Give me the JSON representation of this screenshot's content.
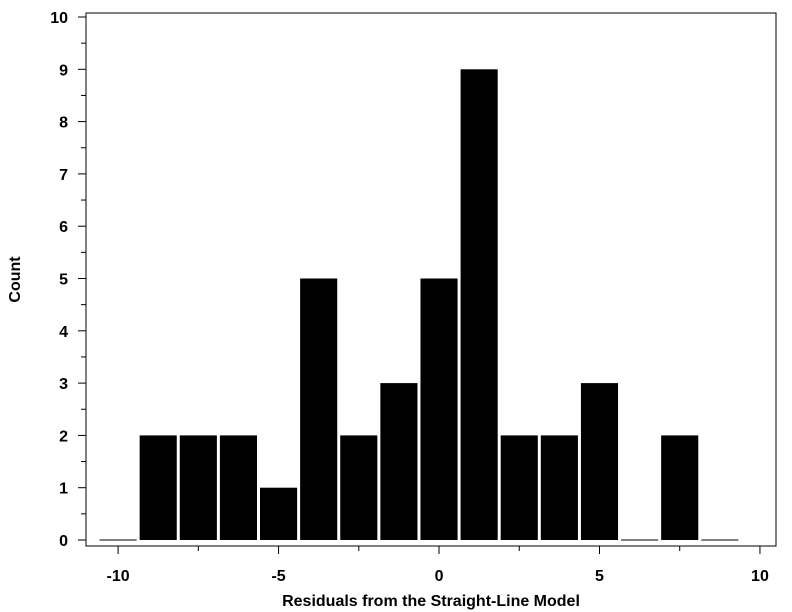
{
  "chart_data": {
    "type": "bar",
    "title": "",
    "xlabel": "Residuals from the Straight-Line Model",
    "ylabel": "Count",
    "xlim": [
      -11.0,
      10.5
    ],
    "ylim": [
      0,
      10
    ],
    "bin_width": 1.25,
    "x_ticks": [
      -10,
      -5,
      0,
      5,
      10
    ],
    "y_ticks": [
      0,
      1,
      2,
      3,
      4,
      5,
      6,
      7,
      8,
      9,
      10
    ],
    "bins": [
      {
        "center": -10.0,
        "value": 0
      },
      {
        "center": -8.75,
        "value": 2
      },
      {
        "center": -7.5,
        "value": 2
      },
      {
        "center": -6.25,
        "value": 2
      },
      {
        "center": -5.0,
        "value": 1
      },
      {
        "center": -3.75,
        "value": 5
      },
      {
        "center": -2.5,
        "value": 2
      },
      {
        "center": -1.25,
        "value": 3
      },
      {
        "center": 0.0,
        "value": 5
      },
      {
        "center": 1.25,
        "value": 9
      },
      {
        "center": 2.5,
        "value": 2
      },
      {
        "center": 3.75,
        "value": 2
      },
      {
        "center": 5.0,
        "value": 3
      },
      {
        "center": 6.25,
        "value": 0
      },
      {
        "center": 7.5,
        "value": 2
      },
      {
        "center": 8.75,
        "value": 0
      }
    ],
    "bar_color": "#000000",
    "grid": false,
    "legend": "none"
  }
}
